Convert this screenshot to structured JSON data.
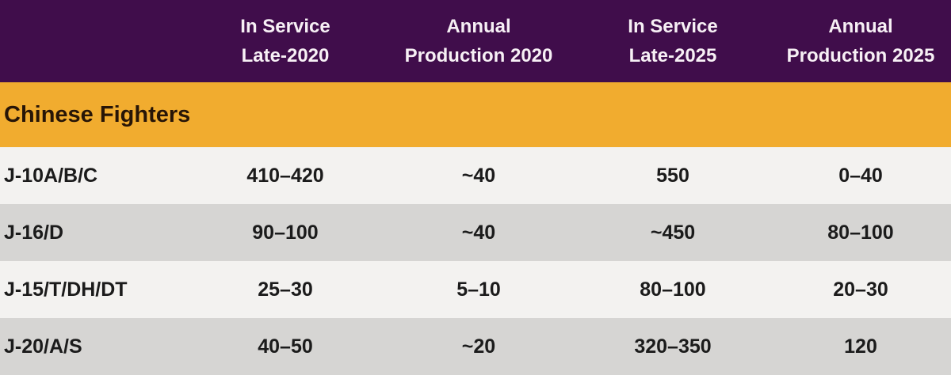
{
  "chart_data": {
    "type": "table",
    "columns": [
      "",
      "In Service Late-2020",
      "Annual Production 2020",
      "In Service Late-2025",
      "Annual Production 2025"
    ],
    "section": "Chinese Fighters",
    "rows": [
      [
        "J-10A/B/C",
        "410–420",
        "~40",
        "550",
        "0–40"
      ],
      [
        "J-16/D",
        "90–100",
        "~40",
        "~450",
        "80–100"
      ],
      [
        "J-15/T/DH/DT",
        "25–30",
        "5–10",
        "80–100",
        "20–30"
      ],
      [
        "J-20/A/S",
        "40–50",
        "~20",
        "320–350",
        "120"
      ]
    ]
  },
  "table": {
    "headers": [
      "In Service\nLate-2020",
      "Annual\nProduction 2020",
      "In Service\nLate-2025",
      "Annual\nProduction 2025"
    ],
    "section_label": "Chinese Fighters",
    "rows": [
      {
        "label": "J-10A/B/C",
        "values": [
          "410–420",
          "~40",
          "550",
          "0–40"
        ]
      },
      {
        "label": "J-16/D",
        "values": [
          "90–100",
          "~40",
          "~450",
          "80–100"
        ]
      },
      {
        "label": "J-15/T/DH/DT",
        "values": [
          "25–30",
          "5–10",
          "80–100",
          "20–30"
        ]
      },
      {
        "label": "J-20/A/S",
        "values": [
          "40–50",
          "~20",
          "320–350",
          "120"
        ]
      }
    ]
  },
  "colors": {
    "header_bg": "#400D4B",
    "header_text": "#F7F0F5",
    "section_bg": "#F1AC2F",
    "section_text": "#271507",
    "row_light": "#F3F2F0",
    "row_dark": "#D6D5D3",
    "data_text": "#1B1B1B"
  }
}
